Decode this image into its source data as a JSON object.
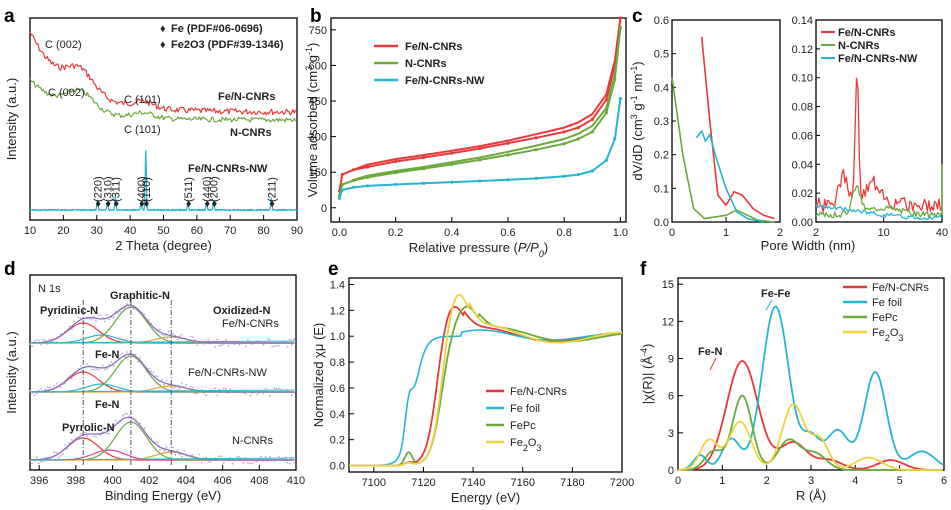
{
  "chart_data": [
    {
      "id": "a",
      "type": "line",
      "panel_label": "a",
      "xlabel": "2 Theta (degree)",
      "ylabel": "Intensity (a.u.)",
      "xlim": [
        10,
        90
      ],
      "xticks": [
        "10",
        "20",
        "30",
        "40",
        "50",
        "60",
        "70",
        "80",
        "90"
      ],
      "series": [
        {
          "name": "Fe/N-CNRs",
          "color": "#e8393a"
        },
        {
          "name": "N-CNRs",
          "color": "#6aaa3a"
        },
        {
          "name": "Fe/N-CNRs-NW",
          "color": "#25b6d1"
        }
      ],
      "legend": [
        {
          "marker": "♦",
          "name": "Fe (PDF#06-0696)",
          "color": "#6f3d96"
        },
        {
          "marker": "♦",
          "name": "Fe2O3 (PDF#39-1346)",
          "color": "#e83e9b"
        }
      ],
      "annotations": [
        "C (002)",
        "C (101)",
        "C (002)",
        "C (101)"
      ],
      "peak_labels": [
        {
          "label": "(220)",
          "x": 30.2,
          "color": "#e83e9b"
        },
        {
          "label": "(310)",
          "x": 33.2,
          "color": "#e83e9b"
        },
        {
          "label": "(311)",
          "x": 35.6,
          "color": "#e83e9b"
        },
        {
          "label": "(400)",
          "x": 43.3,
          "color": "#e83e9b"
        },
        {
          "label": "(110)",
          "x": 44.7,
          "color": "#6f3d96"
        },
        {
          "label": "(511)",
          "x": 57.3,
          "color": "#e83e9b"
        },
        {
          "label": "(440)",
          "x": 62.9,
          "color": "#e83e9b"
        },
        {
          "label": "(200)",
          "x": 65.0,
          "color": "#6f3d96"
        },
        {
          "label": "(211)",
          "x": 82.3,
          "color": "#6f3d96"
        }
      ]
    },
    {
      "id": "b",
      "type": "line",
      "panel_label": "b",
      "xlabel": "Relative pressure (P/P0)",
      "ylabel": "Volume adsorbed (cm3 g-1)",
      "xlim": [
        -0.03,
        1.02
      ],
      "ylim": [
        -60,
        800
      ],
      "xticks": [
        "0.0",
        "0.2",
        "0.4",
        "0.6",
        "0.8",
        "1.0"
      ],
      "yticks": [
        "0",
        "150",
        "300",
        "450",
        "600",
        "750"
      ],
      "x": [
        0.0,
        0.01,
        0.05,
        0.1,
        0.2,
        0.3,
        0.4,
        0.5,
        0.6,
        0.7,
        0.8,
        0.85,
        0.9,
        0.95,
        0.98,
        1.0
      ],
      "series": [
        {
          "name": "Fe/N-CNRs",
          "color": "#e8393a",
          "adsorption": [
            70,
            140,
            160,
            172,
            195,
            212,
            230,
            250,
            272,
            295,
            320,
            338,
            372,
            455,
            600,
            800
          ],
          "desorption": [
            160,
            182,
            205,
            222,
            240,
            260,
            283,
            310,
            338,
            360,
            395,
            478,
            620,
            800
          ]
        },
        {
          "name": "N-CNRs",
          "color": "#6aaa3a",
          "adsorption": [
            50,
            98,
            115,
            128,
            148,
            165,
            183,
            202,
            223,
            245,
            270,
            290,
            320,
            400,
            540,
            760
          ],
          "desorption": [
            118,
            135,
            155,
            172,
            192,
            212,
            236,
            262,
            290,
            312,
            345,
            420,
            560,
            760
          ]
        },
        {
          "name": "Fe/N-CNRs-NW",
          "color": "#25b6d1",
          "adsorption": [
            40,
            75,
            86,
            92,
            98,
            103,
            108,
            113,
            118,
            124,
            133,
            140,
            155,
            200,
            290,
            460
          ]
        }
      ]
    },
    {
      "id": "c",
      "type": "line",
      "panel_label": "c",
      "xlabel": "Pore Width (nm)",
      "ylabel": "dV/dD (cm3 g-1 nm-1)",
      "subplots": [
        {
          "xlim": [
            0,
            2
          ],
          "ylim": [
            0,
            0.6
          ],
          "xticks": [
            "0",
            "1",
            "2"
          ],
          "yticks": [
            "0.0",
            "0.1",
            "0.2",
            "0.3",
            "0.4",
            "0.5",
            "0.6"
          ]
        },
        {
          "xlim": [
            2,
            40
          ],
          "scale": "log",
          "ylim": [
            0,
            0.14
          ],
          "xticks": [
            "2",
            "10",
            "40"
          ],
          "yticks": [
            "0.00",
            "0.02",
            "0.04",
            "0.06",
            "0.08",
            "0.10",
            "0.12",
            "0.14"
          ]
        }
      ],
      "series": [
        {
          "name": "Fe/N-CNRs",
          "color": "#e8393a"
        },
        {
          "name": "N-CNRs",
          "color": "#6aaa3a"
        },
        {
          "name": "Fe/N-CNRs-NW",
          "color": "#25b6d1"
        }
      ]
    },
    {
      "id": "d",
      "type": "line",
      "panel_label": "d",
      "title": "N 1s",
      "xlabel": "Binding Energy (eV)",
      "ylabel": "Intensity (a.u.)",
      "xlim": [
        395.5,
        410
      ],
      "xticks": [
        "396",
        "398",
        "400",
        "402",
        "404",
        "406",
        "408",
        "410"
      ],
      "samples": [
        "Fe/N-CNRs",
        "Fe/N-CNRs-NW",
        "N-CNRs"
      ],
      "components": [
        {
          "name": "Pyridinic-N",
          "center": 398.4,
          "color": "#e8393a"
        },
        {
          "name": "Graphitic-N",
          "center": 401.0,
          "color": "#6aaa3a"
        },
        {
          "name": "Oxidized-N",
          "center": 403.2,
          "color": "#f0a030"
        },
        {
          "name": "Fe-N",
          "center": 399.4,
          "color": "#25b6d1"
        },
        {
          "name": "Pyrrolic-N",
          "center": 399.8,
          "color": "#e83e9b"
        }
      ],
      "labels": [
        "Pyridinic-N",
        "Graphitic-N",
        "Oxidized-N",
        "Fe-N",
        "Fe-N",
        "Pyrrolic-N"
      ]
    },
    {
      "id": "e",
      "type": "line",
      "panel_label": "e",
      "xlabel": "Energy (eV)",
      "ylabel": "Normalized χμ (E)",
      "xlim": [
        7090,
        7200
      ],
      "ylim": [
        -0.05,
        1.45
      ],
      "xticks": [
        "7100",
        "7120",
        "7140",
        "7160",
        "7180",
        "7200"
      ],
      "yticks": [
        "0.0",
        "0.2",
        "0.4",
        "0.6",
        "0.8",
        "1.0",
        "1.2",
        "1.4"
      ],
      "series": [
        {
          "name": "Fe/N-CNRs",
          "color": "#e8393a"
        },
        {
          "name": "Fe foil",
          "color": "#25b6d1"
        },
        {
          "name": "FePc",
          "color": "#6aaa3a"
        },
        {
          "name": "Fe2O3",
          "color": "#f2d23a"
        }
      ]
    },
    {
      "id": "f",
      "type": "line",
      "panel_label": "f",
      "xlabel": "R (Å)",
      "ylabel": "|χ(R)| (Å-4)",
      "xlim": [
        0,
        6
      ],
      "ylim": [
        0,
        15.5
      ],
      "xticks": [
        "0",
        "1",
        "2",
        "3",
        "4",
        "5",
        "6"
      ],
      "yticks": [
        "0",
        "3",
        "6",
        "9",
        "12",
        "15"
      ],
      "annotations": [
        "Fe-N",
        "Fe-Fe"
      ],
      "series": [
        {
          "name": "Fe/N-CNRs",
          "color": "#e8393a"
        },
        {
          "name": "Fe foil",
          "color": "#25b6d1"
        },
        {
          "name": "FePc",
          "color": "#6aaa3a"
        },
        {
          "name": "Fe2O3",
          "color": "#f2d23a"
        }
      ]
    }
  ]
}
